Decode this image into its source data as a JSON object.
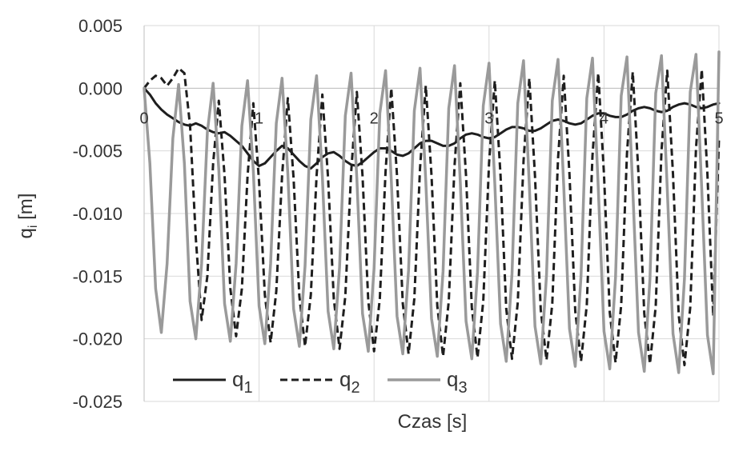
{
  "chart_data": {
    "type": "line",
    "title": "",
    "xlabel": "Czas [s]",
    "ylabel": {
      "base": "q",
      "sub": "i",
      "suffix": " [m]"
    },
    "xlim": [
      0,
      5
    ],
    "ylim": [
      -0.025,
      0.005
    ],
    "x_ticks": [
      "0",
      "1",
      "2",
      "3",
      "4",
      "5"
    ],
    "y_ticks": [
      "0.005",
      "0.000",
      "-0.005",
      "-0.010",
      "-0.015",
      "-0.020",
      "-0.025"
    ],
    "grid": true,
    "legend_position": "bottom-left",
    "x_step": 0.01,
    "series": [
      {
        "name": "q1",
        "base": "q",
        "sub": "1",
        "color": "#1e1e1e",
        "style": "solid",
        "y": [
          0.0,
          -0.0005,
          -0.0012,
          -0.0017,
          -0.0021,
          -0.0024,
          -0.0027,
          -0.0029,
          -0.003,
          -0.0028,
          -0.003,
          -0.0033,
          -0.0035,
          -0.0036,
          -0.0035,
          -0.0038,
          -0.0042,
          -0.0046,
          -0.0052,
          -0.0058,
          -0.0062,
          -0.006,
          -0.0055,
          -0.005,
          -0.0046,
          -0.0048,
          -0.0053,
          -0.0058,
          -0.0062,
          -0.0064,
          -0.006,
          -0.0055,
          -0.0052,
          -0.0051,
          -0.0054,
          -0.0058,
          -0.0061,
          -0.0062,
          -0.0059,
          -0.0055,
          -0.0051,
          -0.0048,
          -0.0048,
          -0.005,
          -0.0053,
          -0.0054,
          -0.0052,
          -0.0048,
          -0.0044,
          -0.0042,
          -0.0042,
          -0.0044,
          -0.0046,
          -0.0046,
          -0.0044,
          -0.004,
          -0.0037,
          -0.0036,
          -0.0037,
          -0.0039,
          -0.004,
          -0.0039,
          -0.0036,
          -0.0033,
          -0.0031,
          -0.0031,
          -0.0032,
          -0.0034,
          -0.0034,
          -0.0032,
          -0.0029,
          -0.0026,
          -0.0025,
          -0.0026,
          -0.0028,
          -0.0029,
          -0.0028,
          -0.0025,
          -0.0022,
          -0.002,
          -0.002,
          -0.0022,
          -0.0023,
          -0.0023,
          -0.0021,
          -0.0018,
          -0.0016,
          -0.0015,
          -0.0016,
          -0.0018,
          -0.0019,
          -0.0018,
          -0.0015,
          -0.0013,
          -0.0012,
          -0.0013,
          -0.0015,
          -0.0016,
          -0.0015,
          -0.0013,
          -0.0012
        ]
      },
      {
        "name": "q2",
        "base": "q",
        "sub": "2",
        "color": "#1e1e1e",
        "style": "dashed",
        "y": [
          0.0,
          0.0006,
          0.001,
          0.0008,
          0.0002,
          0.0008,
          0.0016,
          0.0012,
          -0.003,
          -0.012,
          -0.0185,
          -0.015,
          -0.006,
          -0.001,
          -0.007,
          -0.016,
          -0.0198,
          -0.016,
          -0.007,
          -0.0012,
          -0.0075,
          -0.0165,
          -0.0203,
          -0.0162,
          -0.007,
          -0.0008,
          -0.0072,
          -0.0166,
          -0.0206,
          -0.0165,
          -0.007,
          -0.0005,
          -0.0072,
          -0.0168,
          -0.0208,
          -0.0166,
          -0.0068,
          -0.0003,
          -0.007,
          -0.017,
          -0.021,
          -0.0168,
          -0.0066,
          0.0,
          -0.007,
          -0.0172,
          -0.0212,
          -0.0168,
          -0.0064,
          0.0002,
          -0.007,
          -0.0174,
          -0.0214,
          -0.017,
          -0.0062,
          0.0004,
          -0.007,
          -0.0175,
          -0.0215,
          -0.017,
          -0.006,
          0.0006,
          -0.007,
          -0.0176,
          -0.0216,
          -0.0171,
          -0.0058,
          0.0008,
          -0.007,
          -0.0177,
          -0.0217,
          -0.0172,
          -0.0056,
          0.001,
          -0.0069,
          -0.0178,
          -0.0218,
          -0.0173,
          -0.0054,
          0.0012,
          -0.0069,
          -0.0179,
          -0.0219,
          -0.0173,
          -0.0052,
          0.0013,
          -0.0069,
          -0.018,
          -0.022,
          -0.0174,
          -0.005,
          0.0014,
          -0.0069,
          -0.0181,
          -0.0221,
          -0.0175,
          -0.0048,
          0.0015,
          -0.0069,
          -0.0182,
          -0.004
        ]
      },
      {
        "name": "q3",
        "base": "q",
        "sub": "3",
        "color": "#9a9a9a",
        "style": "solid",
        "y": [
          0.0,
          -0.006,
          -0.016,
          -0.0195,
          -0.014,
          -0.004,
          0.0003,
          -0.006,
          -0.017,
          -0.02,
          -0.014,
          -0.0035,
          0.0004,
          -0.0065,
          -0.0172,
          -0.0202,
          -0.014,
          -0.003,
          0.0006,
          -0.0066,
          -0.0174,
          -0.0204,
          -0.014,
          -0.0028,
          0.0008,
          -0.0068,
          -0.0176,
          -0.0206,
          -0.0142,
          -0.0025,
          0.001,
          -0.007,
          -0.0178,
          -0.0208,
          -0.0143,
          -0.0022,
          0.0012,
          -0.0072,
          -0.018,
          -0.021,
          -0.0144,
          -0.002,
          0.0014,
          -0.0073,
          -0.0182,
          -0.0212,
          -0.0145,
          -0.0018,
          0.0016,
          -0.0074,
          -0.0184,
          -0.0214,
          -0.0146,
          -0.0016,
          0.0018,
          -0.0075,
          -0.0186,
          -0.0216,
          -0.0147,
          -0.0014,
          0.002,
          -0.0076,
          -0.0188,
          -0.0218,
          -0.0148,
          -0.0012,
          0.0022,
          -0.0077,
          -0.019,
          -0.022,
          -0.0149,
          -0.001,
          0.0023,
          -0.0078,
          -0.0192,
          -0.0222,
          -0.015,
          -0.0008,
          0.0024,
          -0.0079,
          -0.0194,
          -0.0224,
          -0.0151,
          -0.0006,
          0.0025,
          -0.008,
          -0.0195,
          -0.0226,
          -0.0152,
          -0.0004,
          0.0026,
          -0.008,
          -0.0196,
          -0.0227,
          -0.0152,
          -0.0003,
          0.0027,
          -0.0081,
          -0.0197,
          -0.0228,
          0.0029
        ]
      }
    ]
  }
}
